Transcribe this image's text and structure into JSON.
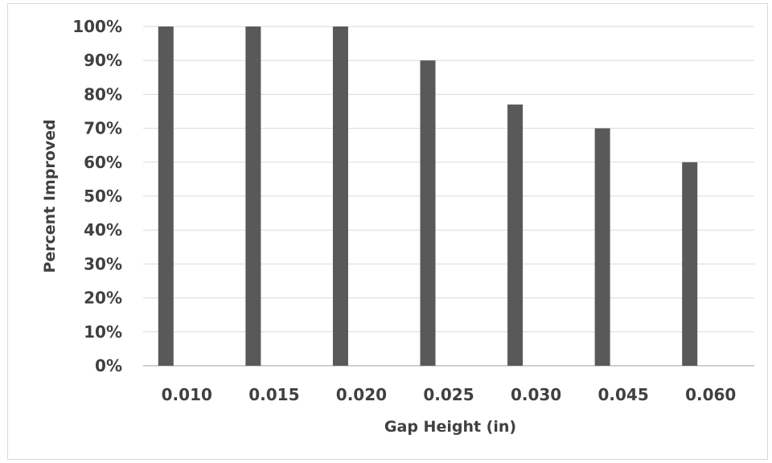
{
  "chart_data": {
    "type": "bar",
    "title": "",
    "xlabel": "Gap Height (in)",
    "ylabel": "Percent Improved",
    "categories": [
      "0.010",
      "0.015",
      "0.020",
      "0.025",
      "0.030",
      "0.045",
      "0.060"
    ],
    "values": [
      100,
      100,
      100,
      90,
      77,
      70,
      60
    ],
    "ylim": [
      0,
      100
    ],
    "yticks": [
      0,
      10,
      20,
      30,
      40,
      50,
      60,
      70,
      80,
      90,
      100
    ],
    "ytick_labels": [
      "0%",
      "10%",
      "20%",
      "30%",
      "40%",
      "50%",
      "60%",
      "70%",
      "80%",
      "90%",
      "100%"
    ],
    "grid": true,
    "legend": "none",
    "colors": {
      "bar": "#595959",
      "grid": "#d9d9d9",
      "axis": "#bfbfbf",
      "text": "#404040"
    }
  }
}
